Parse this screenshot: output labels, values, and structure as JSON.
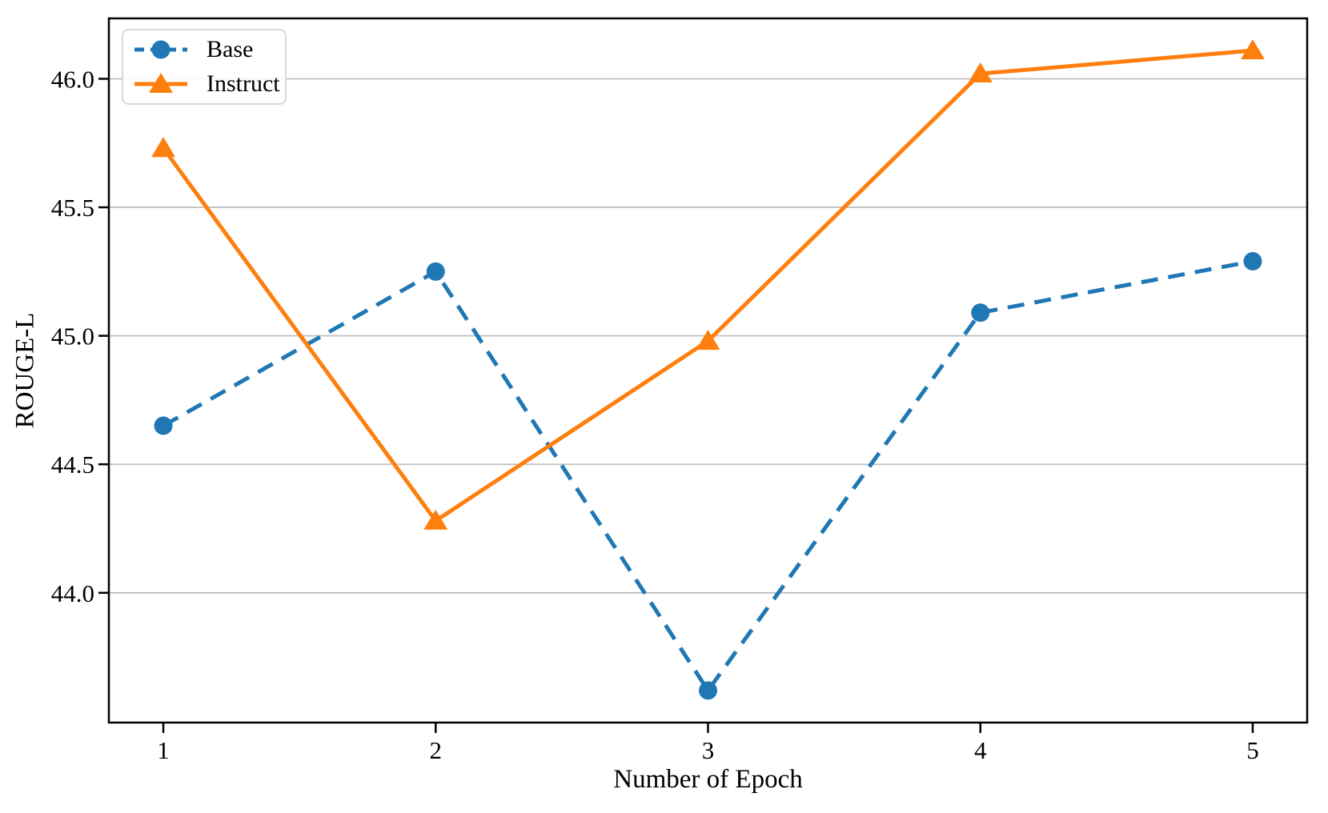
{
  "figure": {
    "background": "#ffffff"
  },
  "chart_data": {
    "type": "line",
    "title": "",
    "xlabel": "Number of Epoch",
    "ylabel": "ROUGE-L",
    "x": [
      1,
      2,
      3,
      4,
      5
    ],
    "series": [
      {
        "name": "Base",
        "values": [
          44.65,
          45.25,
          43.62,
          45.09,
          45.29
        ],
        "color": "#1f77b4",
        "linestyle": "dashed",
        "marker": "circle"
      },
      {
        "name": "Instruct",
        "values": [
          45.73,
          44.28,
          44.98,
          46.02,
          46.11
        ],
        "color": "#ff7f0e",
        "linestyle": "solid",
        "marker": "triangle"
      }
    ],
    "xlim": [
      0.8,
      5.2
    ],
    "ylim": [
      43.495,
      46.235
    ],
    "xticks": [
      1,
      2,
      3,
      4,
      5
    ],
    "xtick_labels": [
      "1",
      "2",
      "3",
      "4",
      "5"
    ],
    "yticks": [
      44.0,
      44.5,
      45.0,
      45.5,
      46.0
    ],
    "ytick_labels": [
      "44.0",
      "44.5",
      "45.0",
      "45.5",
      "46.0"
    ],
    "grid": "horizontal",
    "legend": {
      "position": "upper-left",
      "entries": [
        "Base",
        "Instruct"
      ]
    },
    "colors": {
      "grid": "#bfbfbf",
      "spine": "#000000",
      "tick_label": "#000000"
    }
  }
}
